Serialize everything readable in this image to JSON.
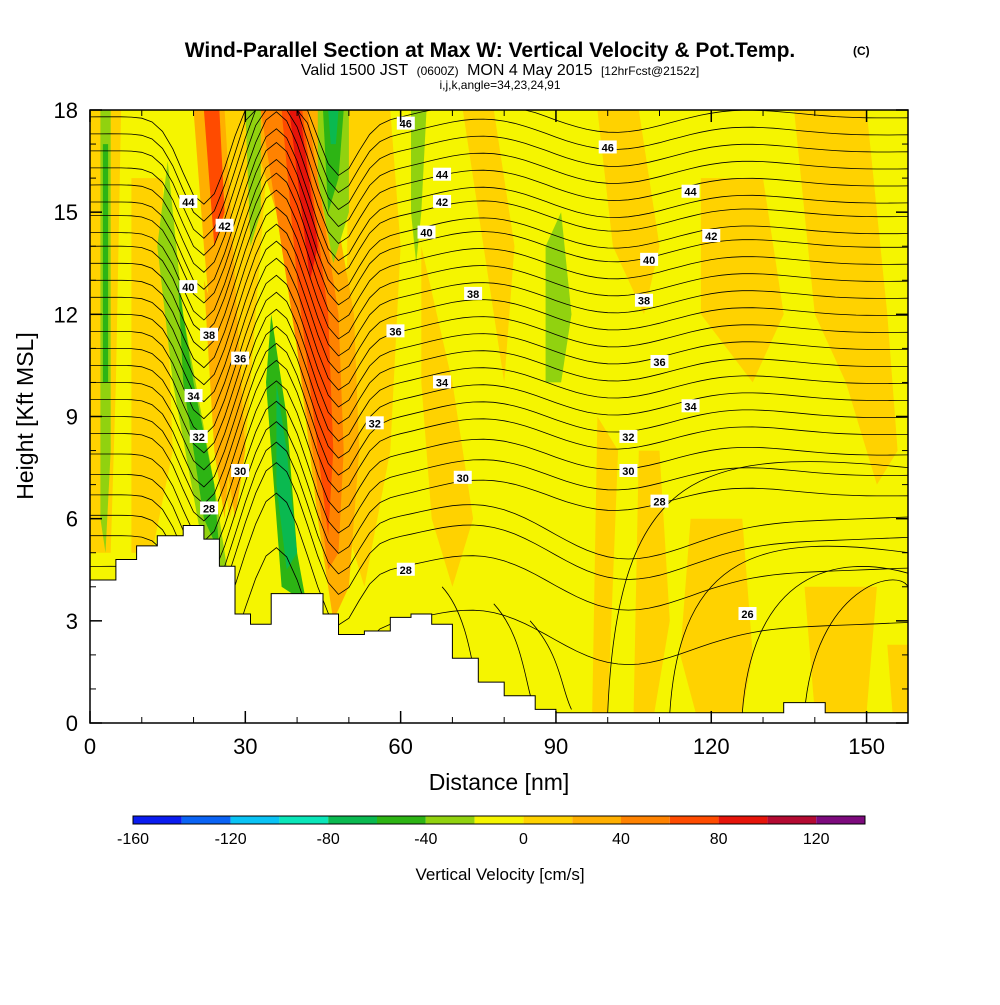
{
  "chart_data": {
    "type": "heatmap",
    "title": {
      "main": "Wind-Parallel Section at Max W: Vertical Velocity & Pot.Temp.",
      "copyright": "(C)",
      "line2_a": "Valid 1500 JST",
      "line2_b": "(0600Z)",
      "line2_c": "MON 4 May 2015",
      "line2_d": "[12hrFcst@2152z]",
      "line3": "i,j,k,angle=34,23,24,91"
    },
    "xlabel": "Distance [nm]",
    "ylabel": "Height [Kft MSL]",
    "xlim": [
      0,
      158
    ],
    "ylim": [
      0,
      18
    ],
    "x_ticks": [
      "0",
      "30",
      "60",
      "90",
      "120",
      "150"
    ],
    "x_tick_values": [
      0,
      30,
      60,
      90,
      120,
      150
    ],
    "y_ticks": [
      "0",
      "3",
      "6",
      "9",
      "12",
      "15",
      "18"
    ],
    "y_tick_values": [
      0,
      3,
      6,
      9,
      12,
      15,
      18
    ],
    "colorbar": {
      "title": "Vertical Velocity [cm/s]",
      "range": [
        -160,
        140
      ],
      "step": 20,
      "labels": [
        "-160",
        "-120",
        "-80",
        "-40",
        "0",
        "40",
        "80",
        "120"
      ],
      "label_values": [
        -160,
        -120,
        -80,
        -40,
        0,
        40,
        80,
        120
      ],
      "colors": [
        "#0a1cf0",
        "#0a63f5",
        "#0ac3f5",
        "#0ae6b9",
        "#0ab950",
        "#2db414",
        "#91d20f",
        "#f5f500",
        "#ffd200",
        "#ffaf00",
        "#ff8200",
        "#ff4b00",
        "#e6140a",
        "#b40a32",
        "#7d0a7d"
      ]
    },
    "terrain": [
      [
        0,
        4.2
      ],
      [
        5,
        4.8
      ],
      [
        9,
        5.2
      ],
      [
        13,
        5.5
      ],
      [
        18,
        5.8
      ],
      [
        22,
        5.4
      ],
      [
        25,
        4.6
      ],
      [
        28,
        3.2
      ],
      [
        31,
        2.9
      ],
      [
        35,
        3.8
      ],
      [
        40,
        3.8
      ],
      [
        45,
        3.2
      ],
      [
        48,
        2.6
      ],
      [
        53,
        2.7
      ],
      [
        58,
        3.1
      ],
      [
        62,
        3.2
      ],
      [
        66,
        2.9
      ],
      [
        70,
        1.9
      ],
      [
        75,
        1.2
      ],
      [
        80,
        0.8
      ],
      [
        86,
        0.4
      ],
      [
        90,
        0.3
      ],
      [
        132,
        0.3
      ],
      [
        134,
        0.6
      ],
      [
        140,
        0.6
      ],
      [
        142,
        0.3
      ],
      [
        158,
        0.3
      ]
    ],
    "contour_labels": [
      {
        "x": 61,
        "y": 17.6,
        "text": "46"
      },
      {
        "x": 100,
        "y": 16.9,
        "text": "46"
      },
      {
        "x": 68,
        "y": 16.1,
        "text": "44"
      },
      {
        "x": 19,
        "y": 15.3,
        "text": "44"
      },
      {
        "x": 116,
        "y": 15.6,
        "text": "44"
      },
      {
        "x": 68,
        "y": 15.3,
        "text": "42"
      },
      {
        "x": 26,
        "y": 14.6,
        "text": "42"
      },
      {
        "x": 120,
        "y": 14.3,
        "text": "42"
      },
      {
        "x": 65,
        "y": 14.4,
        "text": "40"
      },
      {
        "x": 108,
        "y": 13.6,
        "text": "40"
      },
      {
        "x": 19,
        "y": 12.8,
        "text": "40"
      },
      {
        "x": 74,
        "y": 12.6,
        "text": "38"
      },
      {
        "x": 107,
        "y": 12.4,
        "text": "38"
      },
      {
        "x": 23,
        "y": 11.4,
        "text": "38"
      },
      {
        "x": 59,
        "y": 11.5,
        "text": "36"
      },
      {
        "x": 29,
        "y": 10.7,
        "text": "36"
      },
      {
        "x": 110,
        "y": 10.6,
        "text": "36"
      },
      {
        "x": 68,
        "y": 10.0,
        "text": "34"
      },
      {
        "x": 20,
        "y": 9.6,
        "text": "34"
      },
      {
        "x": 116,
        "y": 9.3,
        "text": "34"
      },
      {
        "x": 55,
        "y": 8.8,
        "text": "32"
      },
      {
        "x": 21,
        "y": 8.4,
        "text": "32"
      },
      {
        "x": 104,
        "y": 8.4,
        "text": "32"
      },
      {
        "x": 72,
        "y": 7.2,
        "text": "30"
      },
      {
        "x": 29,
        "y": 7.4,
        "text": "30"
      },
      {
        "x": 104,
        "y": 7.4,
        "text": "30"
      },
      {
        "x": 110,
        "y": 6.5,
        "text": "28"
      },
      {
        "x": 23,
        "y": 6.3,
        "text": "28"
      },
      {
        "x": 61,
        "y": 4.5,
        "text": "28"
      },
      {
        "x": 127,
        "y": 3.2,
        "text": "26"
      }
    ]
  }
}
